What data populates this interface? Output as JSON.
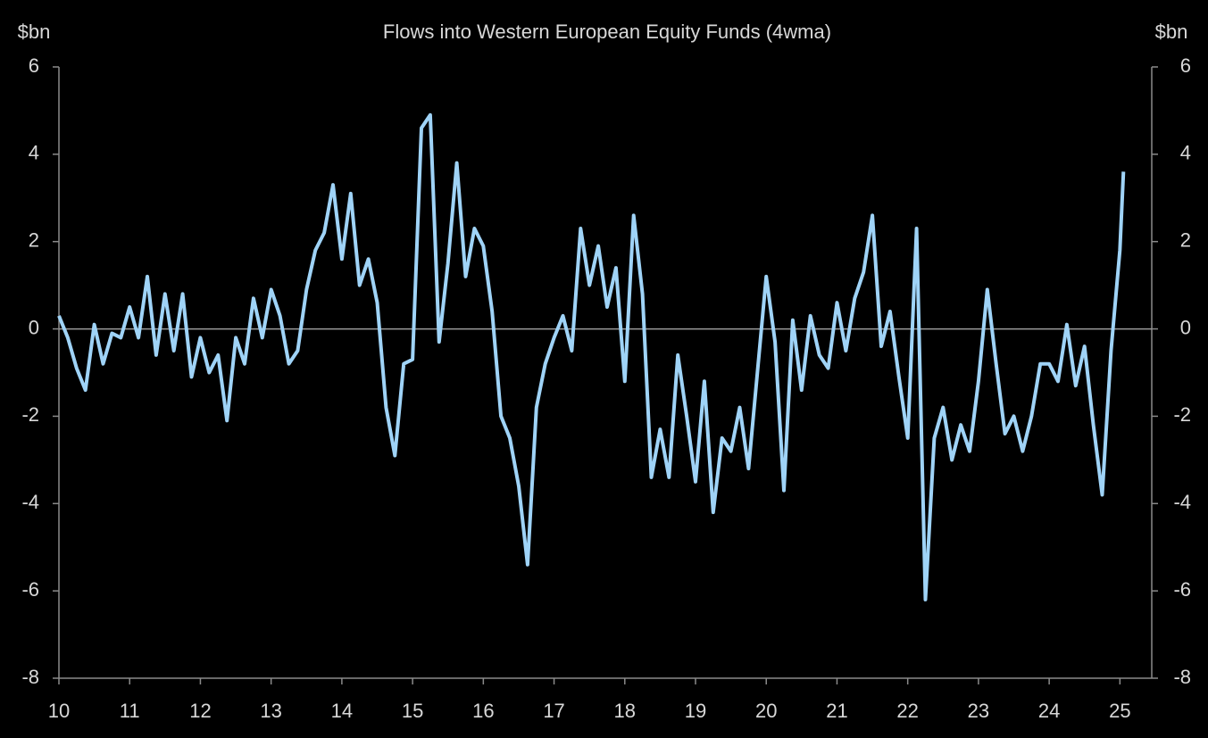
{
  "chart_data": {
    "type": "line",
    "title": "Flows into Western European Equity Funds (4wma)",
    "y_label": "$bn",
    "y2_label": "$bn",
    "xlim": [
      10,
      25.45
    ],
    "xticks": [
      10,
      11,
      12,
      13,
      14,
      15,
      16,
      17,
      18,
      19,
      20,
      21,
      22,
      23,
      24,
      25
    ],
    "ylim": [
      -8,
      6
    ],
    "yticks": [
      -8,
      -6,
      -4,
      -2,
      0,
      2,
      4,
      6
    ],
    "y2lim": [
      -8,
      6
    ],
    "y2ticks": [
      -8,
      -6,
      -4,
      -2,
      0,
      2,
      4,
      6
    ],
    "zero_line": true,
    "series": [
      {
        "name": "Flows",
        "color": "#9fd3f7",
        "x": [
          10,
          10.125,
          10.25,
          10.375,
          10.5,
          10.625,
          10.75,
          10.875,
          11,
          11.125,
          11.25,
          11.375,
          11.5,
          11.625,
          11.75,
          11.875,
          12,
          12.125,
          12.25,
          12.375,
          12.5,
          12.625,
          12.75,
          12.875,
          13,
          13.125,
          13.25,
          13.375,
          13.5,
          13.625,
          13.75,
          13.875,
          14,
          14.125,
          14.25,
          14.375,
          14.5,
          14.625,
          14.75,
          14.875,
          15,
          15.125,
          15.25,
          15.375,
          15.5,
          15.625,
          15.75,
          15.875,
          16,
          16.125,
          16.25,
          16.375,
          16.5,
          16.625,
          16.75,
          16.875,
          17,
          17.125,
          17.25,
          17.375,
          17.5,
          17.625,
          17.75,
          17.875,
          18,
          18.125,
          18.25,
          18.375,
          18.5,
          18.625,
          18.75,
          18.875,
          19,
          19.125,
          19.25,
          19.375,
          19.5,
          19.625,
          19.75,
          19.875,
          20,
          20.125,
          20.25,
          20.375,
          20.5,
          20.625,
          20.75,
          20.875,
          21,
          21.125,
          21.25,
          21.375,
          21.5,
          21.625,
          21.75,
          21.875,
          22,
          22.125,
          22.25,
          22.375,
          22.5,
          22.625,
          22.75,
          22.875,
          23,
          23.125,
          23.25,
          23.375,
          23.5,
          23.625,
          23.75,
          23.875,
          24,
          24.125,
          24.25,
          24.375,
          24.5,
          24.625,
          24.75,
          24.875,
          25,
          25.05
        ],
        "values": [
          0.3,
          -0.2,
          -0.9,
          -1.4,
          0.1,
          -0.8,
          -0.1,
          -0.2,
          0.5,
          -0.2,
          1.2,
          -0.6,
          0.8,
          -0.5,
          0.8,
          -1.1,
          -0.2,
          -1.0,
          -0.6,
          -2.1,
          -0.2,
          -0.8,
          0.7,
          -0.2,
          0.9,
          0.3,
          -0.8,
          -0.5,
          0.9,
          1.8,
          2.2,
          3.3,
          1.6,
          3.1,
          1.0,
          1.6,
          0.6,
          -1.8,
          -2.9,
          -0.8,
          -0.7,
          4.6,
          4.9,
          -0.3,
          1.5,
          3.8,
          1.2,
          2.3,
          1.9,
          0.4,
          -2.0,
          -2.5,
          -3.6,
          -5.4,
          -1.8,
          -0.8,
          -0.2,
          0.3,
          -0.5,
          2.3,
          1.0,
          1.9,
          0.5,
          1.4,
          -1.2,
          2.6,
          0.8,
          -3.4,
          -2.3,
          -3.4,
          -0.6,
          -2.0,
          -3.5,
          -1.2,
          -4.2,
          -2.5,
          -2.8,
          -1.8,
          -3.2,
          -1.0,
          1.2,
          -0.3,
          -3.7,
          0.2,
          -1.4,
          0.3,
          -0.6,
          -0.9,
          0.6,
          -0.5,
          0.7,
          1.3,
          2.6,
          -0.4,
          0.4,
          -1.1,
          -2.5,
          2.3,
          -6.2,
          -2.5,
          -1.8,
          -3.0,
          -2.2,
          -2.8,
          -1.2,
          0.9,
          -0.8,
          -2.4,
          -2.0,
          -2.8,
          -2.0,
          -0.8,
          -0.8,
          -1.2,
          0.1,
          -1.3,
          -0.4,
          -2.2,
          -3.8,
          -0.5,
          1.8,
          3.6
        ]
      }
    ]
  }
}
